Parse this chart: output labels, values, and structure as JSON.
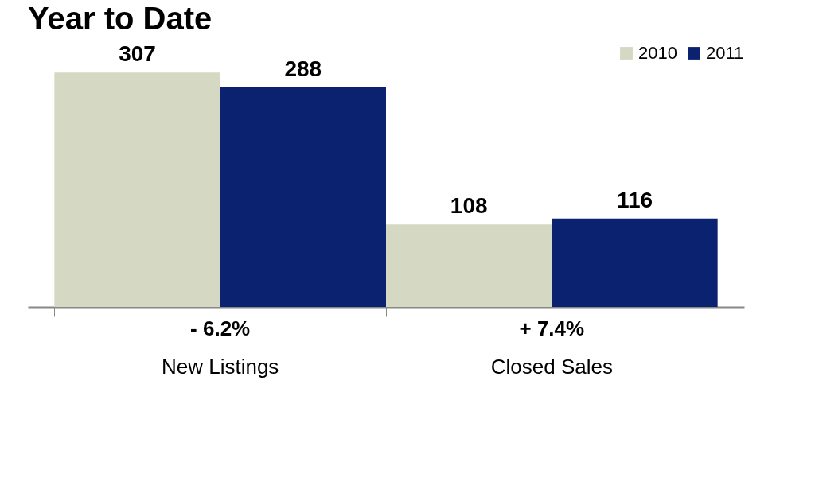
{
  "chart_data": {
    "type": "bar",
    "title": "Year to Date",
    "categories": [
      "New Listings",
      "Closed Sales"
    ],
    "series": [
      {
        "name": "2010",
        "color": "#d5d8c2",
        "values": [
          307,
          108
        ]
      },
      {
        "name": "2011",
        "color": "#0b2270",
        "values": [
          288,
          116
        ]
      }
    ],
    "annotations": [
      "- 6.2%",
      "+ 7.4%"
    ],
    "data_labels": true,
    "legend": "top right",
    "grid": false
  }
}
